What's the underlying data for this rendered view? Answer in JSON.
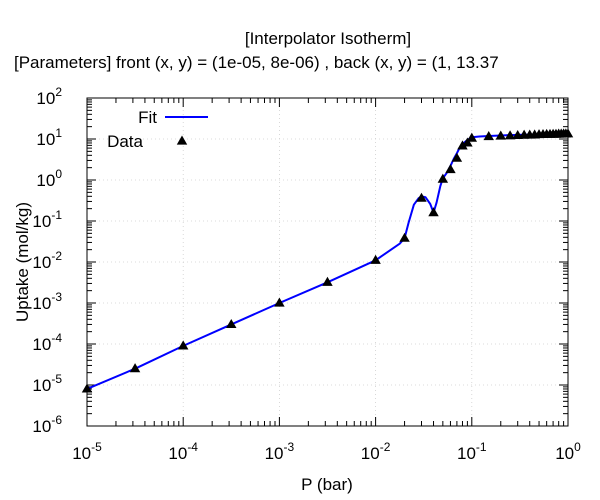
{
  "chart_data": {
    "type": "scatter",
    "title": "[Interpolator Isotherm]",
    "subtitle": "[Parameters] front (x, y) = (1e-05, 8e-06) , back (x, y) = (1, 13.37",
    "xlabel": "P (bar)",
    "ylabel": "Uptake (mol/kg)",
    "xscale": "log",
    "yscale": "log",
    "xlim": [
      1e-05,
      1
    ],
    "ylim": [
      1e-06,
      100
    ],
    "grid": true,
    "legend_position": "top-left",
    "x_ticks": [
      {
        "value": 1e-05,
        "base": "10",
        "exp": "-5"
      },
      {
        "value": 0.0001,
        "base": "10",
        "exp": "-4"
      },
      {
        "value": 0.001,
        "base": "10",
        "exp": "-3"
      },
      {
        "value": 0.01,
        "base": "10",
        "exp": "-2"
      },
      {
        "value": 0.1,
        "base": "10",
        "exp": "-1"
      },
      {
        "value": 1,
        "base": "10",
        "exp": "0"
      }
    ],
    "y_ticks": [
      {
        "value": 1e-06,
        "base": "10",
        "exp": "-6"
      },
      {
        "value": 1e-05,
        "base": "10",
        "exp": "-5"
      },
      {
        "value": 0.0001,
        "base": "10",
        "exp": "-4"
      },
      {
        "value": 0.001,
        "base": "10",
        "exp": "-3"
      },
      {
        "value": 0.01,
        "base": "10",
        "exp": "-2"
      },
      {
        "value": 0.1,
        "base": "10",
        "exp": "-1"
      },
      {
        "value": 1,
        "base": "10",
        "exp": "0"
      },
      {
        "value": 10,
        "base": "10",
        "exp": "1"
      },
      {
        "value": 100,
        "base": "10",
        "exp": "2"
      }
    ],
    "series": [
      {
        "name": "Fit",
        "kind": "line",
        "color": "#0000ff",
        "x": [
          1e-05,
          3.16e-05,
          0.0001,
          0.000316,
          0.001,
          0.00316,
          0.01,
          0.0178,
          0.02,
          0.022,
          0.025,
          0.028,
          0.03,
          0.033,
          0.037,
          0.04,
          0.043,
          0.047,
          0.05,
          0.055,
          0.06,
          0.065,
          0.07,
          0.075,
          0.08,
          0.09,
          0.1,
          0.12,
          0.15,
          0.2,
          0.3,
          0.5,
          0.7,
          1
        ],
        "y": [
          8e-06,
          2.5e-05,
          9e-05,
          0.0003,
          0.001,
          0.0032,
          0.011,
          0.028,
          0.038,
          0.09,
          0.25,
          0.36,
          0.4,
          0.38,
          0.26,
          0.16,
          0.28,
          0.7,
          1.1,
          1.5,
          2.2,
          3.3,
          4.5,
          6.2,
          7.5,
          9.5,
          11,
          11.5,
          11.8,
          12.2,
          12.6,
          13,
          13.2,
          13.37
        ]
      },
      {
        "name": "Data",
        "kind": "markers",
        "marker": "triangle",
        "color": "#000000",
        "x": [
          1e-05,
          3.16e-05,
          0.0001,
          0.000316,
          0.001,
          0.00316,
          0.01,
          0.02,
          0.03,
          0.04,
          0.05,
          0.06,
          0.07,
          0.08,
          0.09,
          0.1,
          0.15,
          0.2,
          0.25,
          0.3,
          0.35,
          0.4,
          0.45,
          0.5,
          0.55,
          0.6,
          0.65,
          0.7,
          0.75,
          0.8,
          0.85,
          0.9,
          0.95,
          1
        ],
        "y": [
          8e-06,
          2.5e-05,
          9e-05,
          0.0003,
          0.001,
          0.0032,
          0.011,
          0.038,
          0.36,
          0.16,
          1.05,
          1.8,
          3.4,
          6.8,
          8,
          10.5,
          11.5,
          11.8,
          12,
          12.2,
          12.4,
          12.5,
          12.6,
          12.8,
          12.9,
          13,
          13,
          13.1,
          13.1,
          13.2,
          13.2,
          13.3,
          13.3,
          13.37
        ]
      }
    ]
  }
}
